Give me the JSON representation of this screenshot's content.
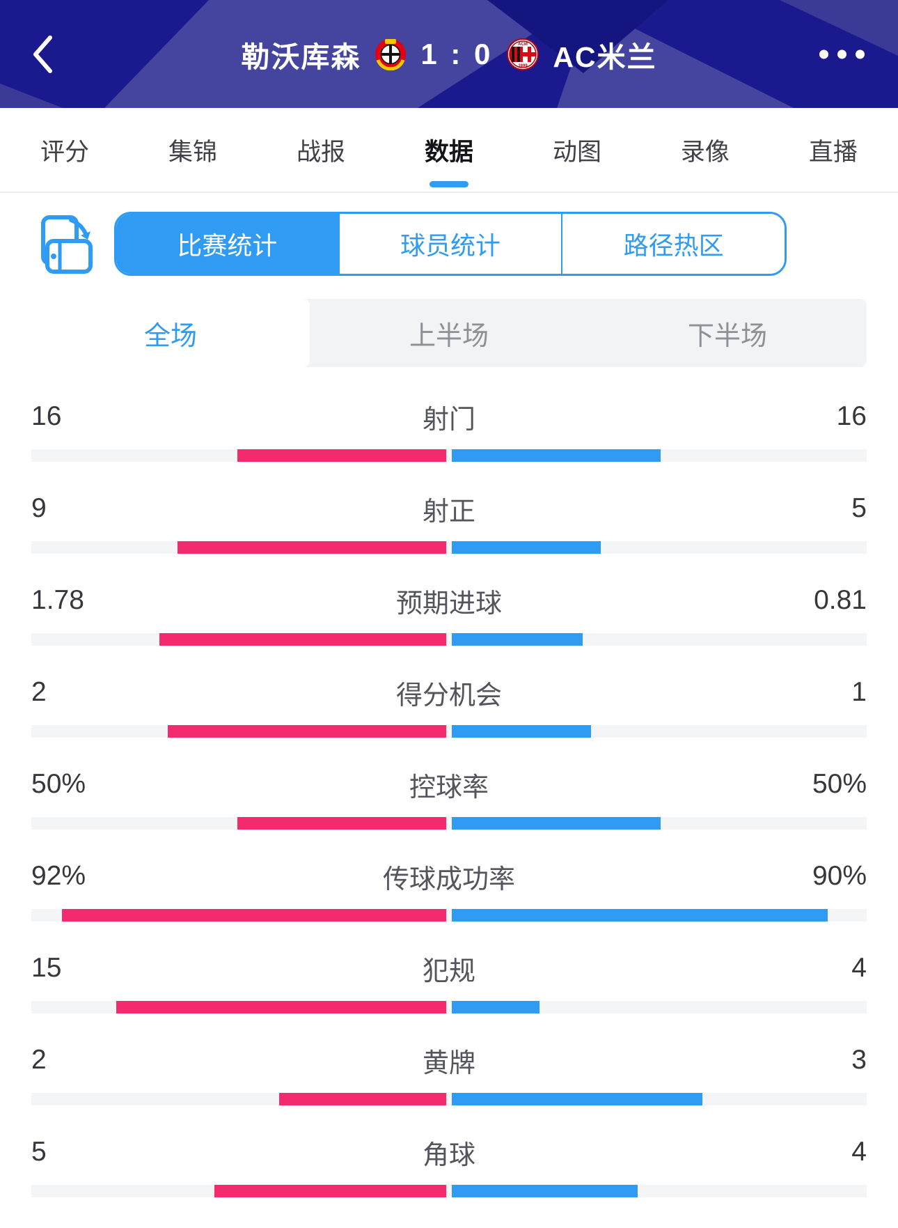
{
  "colors": {
    "header_bg": "#1a1a8e",
    "header_pattern_light": "#45459f",
    "accent_blue": "#2f9bf2",
    "home_pink": "#f42a6e",
    "bar_track": "#f4f5f7"
  },
  "header": {
    "back_icon": "chevron-left",
    "more_icon": "ellipsis-horizontal",
    "home_team": "勒沃库森",
    "score": "1 : 0",
    "away_team": "AC米兰",
    "home_crest": "bayer-leverkusen-crest",
    "away_crest": "ac-milan-crest"
  },
  "nav_tabs": [
    {
      "label": "评分",
      "active": false
    },
    {
      "label": "集锦",
      "active": false
    },
    {
      "label": "战报",
      "active": false
    },
    {
      "label": "数据",
      "active": true
    },
    {
      "label": "动图",
      "active": false
    },
    {
      "label": "录像",
      "active": false
    },
    {
      "label": "直播",
      "active": false
    }
  ],
  "stat_type_tabs": [
    {
      "label": "比赛统计",
      "active": true
    },
    {
      "label": "球员统计",
      "active": false
    },
    {
      "label": "路径热区",
      "active": false
    }
  ],
  "period_tabs": [
    {
      "label": "全场",
      "active": true
    },
    {
      "label": "上半场",
      "active": false
    },
    {
      "label": "下半场",
      "active": false
    }
  ],
  "chart_data": {
    "type": "bar",
    "title": "比赛统计 全场",
    "home_team": "勒沃库森",
    "away_team": "AC米兰",
    "home_color": "#f42a6e",
    "away_color": "#2f9bf2",
    "layout": "paired horizontal bars growing outward from center",
    "rows": [
      {
        "label": "射门",
        "home": "16",
        "away": "16"
      },
      {
        "label": "射正",
        "home": "9",
        "away": "5"
      },
      {
        "label": "预期进球",
        "home": "1.78",
        "away": "0.81"
      },
      {
        "label": "得分机会",
        "home": "2",
        "away": "1"
      },
      {
        "label": "控球率",
        "home": "50%",
        "away": "50%"
      },
      {
        "label": "传球成功率",
        "home": "92%",
        "away": "90%"
      },
      {
        "label": "犯规",
        "home": "15",
        "away": "4"
      },
      {
        "label": "黄牌",
        "home": "2",
        "away": "3"
      },
      {
        "label": "角球",
        "home": "5",
        "away": "4"
      }
    ]
  }
}
